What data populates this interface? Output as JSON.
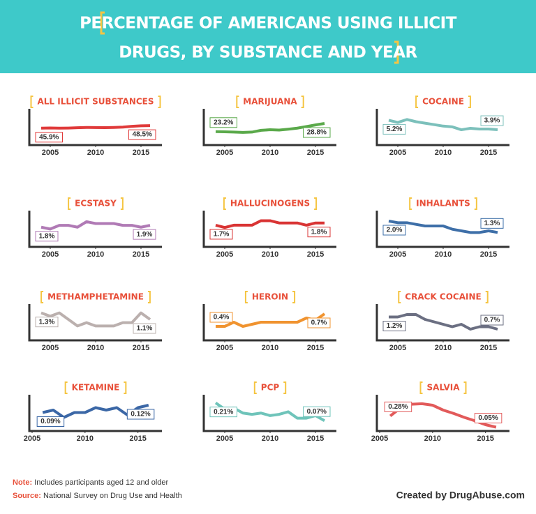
{
  "header": {
    "title_lines": [
      "PERCENTAGE OF AMERICANS USING ILLICIT",
      "DRUGS, BY SUBSTANCE AND YEAR"
    ]
  },
  "chart_data": [
    {
      "type": "line",
      "title": "ALL ILLICIT SUBSTANCES",
      "x": [
        2004,
        2005,
        2006,
        2007,
        2008,
        2009,
        2010,
        2011,
        2012,
        2013,
        2014,
        2015,
        2016
      ],
      "xlim": [
        2003,
        2017
      ],
      "xticks": [
        2005,
        2010,
        2015
      ],
      "ylim": [
        30,
        60
      ],
      "series": [
        {
          "color": "#e03a3a",
          "values": [
            45.9,
            46.1,
            45.9,
            46.0,
            46.3,
            46.6,
            46.5,
            46.4,
            46.6,
            47.0,
            47.8,
            48.3,
            48.5
          ],
          "value_labels": [
            "45.9%",
            null,
            null,
            null,
            null,
            null,
            null,
            null,
            null,
            null,
            null,
            null,
            "48.5%"
          ]
        }
      ]
    },
    {
      "type": "line",
      "title": "MARIJUANA",
      "x": [
        2004,
        2005,
        2006,
        2007,
        2008,
        2009,
        2010,
        2011,
        2012,
        2013,
        2014,
        2015,
        2016
      ],
      "xlim": [
        2003,
        2017
      ],
      "xticks": [
        2005,
        2010,
        2015
      ],
      "ylim": [
        15,
        35
      ],
      "series": [
        {
          "color": "#5aa94a",
          "values": [
            23.2,
            23.1,
            22.9,
            22.7,
            22.9,
            24.1,
            24.5,
            24.3,
            24.9,
            25.6,
            26.7,
            27.8,
            28.8
          ],
          "value_labels": [
            "23.2%",
            null,
            null,
            null,
            null,
            null,
            null,
            null,
            null,
            null,
            null,
            null,
            "28.8%"
          ]
        }
      ]
    },
    {
      "type": "line",
      "title": "COCAINE",
      "x": [
        2004,
        2005,
        2006,
        2007,
        2008,
        2009,
        2010,
        2011,
        2012,
        2013,
        2014,
        2015,
        2016
      ],
      "xlim": [
        2003,
        2017
      ],
      "xticks": [
        2005,
        2010,
        2015
      ],
      "ylim": [
        2,
        6
      ],
      "series": [
        {
          "color": "#7cc0bb",
          "values": [
            5.2,
            4.9,
            5.3,
            5.0,
            4.8,
            4.6,
            4.4,
            4.3,
            3.9,
            4.1,
            4.0,
            4.0,
            3.9
          ],
          "value_labels": [
            "5.2%",
            null,
            null,
            null,
            null,
            null,
            null,
            null,
            null,
            null,
            null,
            null,
            "3.9%"
          ]
        }
      ]
    },
    {
      "type": "line",
      "title": "ECSTASY",
      "x": [
        2004,
        2005,
        2006,
        2007,
        2008,
        2009,
        2010,
        2011,
        2012,
        2013,
        2014,
        2015,
        2016
      ],
      "xlim": [
        2003,
        2017
      ],
      "xticks": [
        2005,
        2010,
        2015
      ],
      "ylim": [
        0.8,
        2.4
      ],
      "series": [
        {
          "color": "#b07ab5",
          "values": [
            1.8,
            1.7,
            1.9,
            1.9,
            1.8,
            2.1,
            2.0,
            2.0,
            2.0,
            1.9,
            1.9,
            1.8,
            1.9
          ],
          "value_labels": [
            "1.8%",
            null,
            null,
            null,
            null,
            null,
            null,
            null,
            null,
            null,
            null,
            null,
            "1.9%"
          ]
        }
      ]
    },
    {
      "type": "line",
      "title": "HALLUCINOGENS",
      "x": [
        2004,
        2005,
        2006,
        2007,
        2008,
        2009,
        2010,
        2011,
        2012,
        2013,
        2014,
        2015,
        2016
      ],
      "xlim": [
        2003,
        2017
      ],
      "xticks": [
        2005,
        2010,
        2015
      ],
      "ylim": [
        0.8,
        2.1
      ],
      "series": [
        {
          "color": "#d93434",
          "values": [
            1.7,
            1.6,
            1.7,
            1.7,
            1.7,
            1.9,
            1.9,
            1.8,
            1.8,
            1.8,
            1.7,
            1.8,
            1.8
          ],
          "value_labels": [
            "1.7%",
            null,
            null,
            null,
            null,
            null,
            null,
            null,
            null,
            null,
            null,
            null,
            "1.8%"
          ]
        }
      ]
    },
    {
      "type": "line",
      "title": "INHALANTS",
      "x": [
        2004,
        2005,
        2006,
        2007,
        2008,
        2009,
        2010,
        2011,
        2012,
        2013,
        2014,
        2015,
        2016
      ],
      "xlim": [
        2003,
        2017
      ],
      "xticks": [
        2005,
        2010,
        2015
      ],
      "ylim": [
        0.5,
        2.3
      ],
      "series": [
        {
          "color": "#3e6fa8",
          "values": [
            2.0,
            1.9,
            1.9,
            1.8,
            1.7,
            1.7,
            1.7,
            1.5,
            1.4,
            1.3,
            1.3,
            1.4,
            1.3
          ],
          "value_labels": [
            "2.0%",
            null,
            null,
            null,
            null,
            null,
            null,
            null,
            null,
            null,
            null,
            null,
            "1.3%"
          ]
        }
      ]
    },
    {
      "type": "line",
      "title": "METHAMPHETAMINE",
      "x": [
        2004,
        2005,
        2006,
        2007,
        2008,
        2009,
        2010,
        2011,
        2012,
        2013,
        2014,
        2015,
        2016
      ],
      "xlim": [
        2003,
        2017
      ],
      "xticks": [
        2005,
        2010,
        2015
      ],
      "ylim": [
        0.5,
        1.4
      ],
      "series": [
        {
          "color": "#bbb0ae",
          "values": [
            1.3,
            1.2,
            1.3,
            1.1,
            0.9,
            1.0,
            0.9,
            0.9,
            0.9,
            1.0,
            1.0,
            1.3,
            1.1
          ],
          "value_labels": [
            "1.3%",
            null,
            null,
            null,
            null,
            null,
            null,
            null,
            null,
            null,
            null,
            null,
            "1.1%"
          ]
        }
      ]
    },
    {
      "type": "line",
      "title": "HEROIN",
      "x": [
        2004,
        2005,
        2006,
        2007,
        2008,
        2009,
        2010,
        2011,
        2012,
        2013,
        2014,
        2015,
        2016
      ],
      "xlim": [
        2003,
        2017
      ],
      "xticks": [
        2005,
        2010,
        2015
      ],
      "ylim": [
        0.1,
        0.8
      ],
      "series": [
        {
          "color": "#f0932f",
          "values": [
            0.4,
            0.4,
            0.5,
            0.4,
            0.45,
            0.5,
            0.5,
            0.5,
            0.5,
            0.5,
            0.6,
            0.55,
            0.7
          ],
          "value_labels": [
            "0.4%",
            null,
            null,
            null,
            null,
            null,
            null,
            null,
            null,
            null,
            null,
            null,
            "0.7%"
          ]
        }
      ]
    },
    {
      "type": "line",
      "title": "CRACK COCAINE",
      "x": [
        2004,
        2005,
        2006,
        2007,
        2008,
        2009,
        2010,
        2011,
        2012,
        2013,
        2014,
        2015,
        2016
      ],
      "xlim": [
        2003,
        2017
      ],
      "xticks": [
        2005,
        2010,
        2015
      ],
      "ylim": [
        0.3,
        1.5
      ],
      "series": [
        {
          "color": "#6b6f82",
          "values": [
            1.2,
            1.2,
            1.3,
            1.3,
            1.1,
            1.0,
            0.9,
            0.8,
            0.9,
            0.7,
            0.8,
            0.8,
            0.7
          ],
          "value_labels": [
            "1.2%",
            null,
            null,
            null,
            null,
            null,
            null,
            null,
            null,
            null,
            null,
            null,
            "0.7%"
          ]
        }
      ]
    },
    {
      "type": "line",
      "title": "KETAMINE",
      "x": [
        2006,
        2007,
        2008,
        2009,
        2010,
        2011,
        2012,
        2013,
        2014,
        2015,
        2016
      ],
      "xlim": [
        2005,
        2017
      ],
      "xticks": [
        2005,
        2010,
        2015
      ],
      "ylim": [
        0.02,
        0.14
      ],
      "series": [
        {
          "color": "#3b67a6",
          "values": [
            0.09,
            0.1,
            0.07,
            0.09,
            0.09,
            0.11,
            0.1,
            0.11,
            0.08,
            0.11,
            0.12
          ],
          "value_labels": [
            "0.09%",
            null,
            null,
            null,
            null,
            null,
            null,
            null,
            null,
            null,
            "0.12%"
          ]
        }
      ]
    },
    {
      "type": "line",
      "title": "PCP",
      "x": [
        2004,
        2005,
        2006,
        2007,
        2008,
        2009,
        2010,
        2011,
        2012,
        2013,
        2014,
        2015,
        2016
      ],
      "xlim": [
        2003,
        2017
      ],
      "xticks": [
        2005,
        2010,
        2015
      ],
      "ylim": [
        0.0,
        0.23
      ],
      "series": [
        {
          "color": "#6fc4ba",
          "values": [
            0.21,
            0.16,
            0.17,
            0.13,
            0.12,
            0.13,
            0.11,
            0.12,
            0.14,
            0.09,
            0.09,
            0.11,
            0.07
          ],
          "value_labels": [
            "0.21%",
            null,
            null,
            null,
            null,
            null,
            null,
            null,
            null,
            null,
            null,
            null,
            "0.07%"
          ]
        }
      ]
    },
    {
      "type": "line",
      "title": "SALVIA",
      "x": [
        2006,
        2007,
        2008,
        2009,
        2010,
        2011,
        2012,
        2013,
        2014,
        2015,
        2016
      ],
      "xlim": [
        2005,
        2017
      ],
      "xticks": [
        2005,
        2010,
        2015
      ],
      "ylim": [
        0.0,
        0.6
      ],
      "series": [
        {
          "color": "#e25a5a",
          "values": [
            0.28,
            0.45,
            0.52,
            0.53,
            0.5,
            0.4,
            0.33,
            0.25,
            0.18,
            0.1,
            0.05
          ],
          "value_labels": [
            "0.28%",
            null,
            null,
            null,
            null,
            null,
            null,
            null,
            null,
            null,
            "0.05%"
          ]
        }
      ]
    }
  ],
  "footer": {
    "note_label": "Note:",
    "note": "Includes participants aged 12 and older",
    "source_label": "Source:",
    "source": "National Survey on Drug Use and Health",
    "credit": "Created by DrugAbuse.com"
  }
}
